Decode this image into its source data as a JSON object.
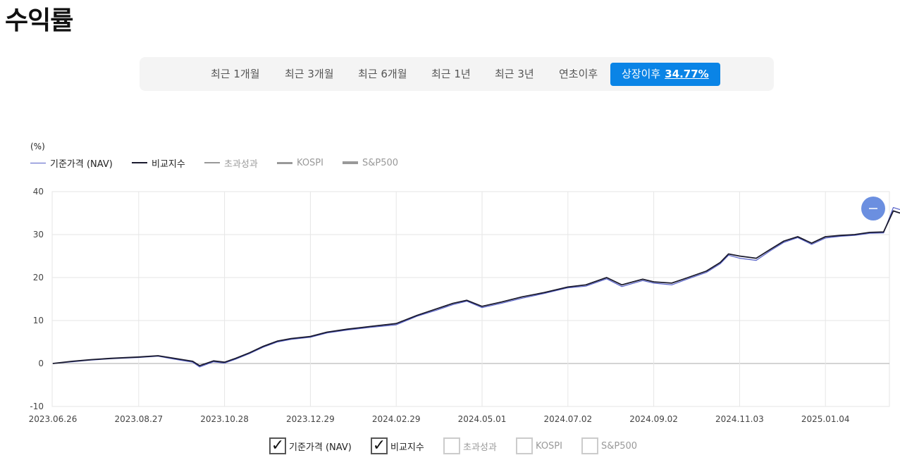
{
  "page": {
    "title": "수익률"
  },
  "period_tabs": [
    {
      "label": "최근 1개월"
    },
    {
      "label": "최근 3개월"
    },
    {
      "label": "최근 6개월"
    },
    {
      "label": "최근 1년"
    },
    {
      "label": "최근 3년"
    },
    {
      "label": "연초이후"
    },
    {
      "label": "상장이후",
      "value": "34.77%",
      "active": true
    }
  ],
  "unit_label": "(%)",
  "legend": [
    {
      "label": "기준가격 (NAV)",
      "color": "#5560c8",
      "active": true
    },
    {
      "label": "비교지수",
      "color": "#1a1a2e",
      "active": true
    },
    {
      "label": "초과성과",
      "color": "#999999",
      "active": false
    },
    {
      "label": "KOSPI",
      "color": "#999999",
      "active": false
    },
    {
      "label": "S&P500",
      "color": "#999999",
      "active": false
    }
  ],
  "zoom_button": {
    "icon": "minus-icon",
    "color": "#6b8fe0"
  },
  "toggles": [
    {
      "label": "기준가격 (NAV)",
      "checked": true
    },
    {
      "label": "비교지수",
      "checked": true
    },
    {
      "label": "초과성과",
      "checked": false
    },
    {
      "label": "KOSPI",
      "checked": false
    },
    {
      "label": "S&P500",
      "checked": false
    }
  ],
  "chart_data": {
    "type": "line",
    "title": "",
    "xlabel": "",
    "ylabel": "(%)",
    "ylim": [
      -10,
      40
    ],
    "yticks": [
      -10,
      0,
      10,
      20,
      30,
      40
    ],
    "xticks": [
      "2023.06.26",
      "2023.08.27",
      "2023.10.28",
      "2023.12.29",
      "2024.02.29",
      "2024.05.01",
      "2024.07.02",
      "2024.09.02",
      "2024.11.03",
      "2025.01.04"
    ],
    "grid": true,
    "legend_position": "top-left",
    "series": [
      {
        "name": "비교지수",
        "color": "#1a1a2e",
        "x": [
          "2023.06.26",
          "2023.07.10",
          "2023.07.24",
          "2023.08.07",
          "2023.08.27",
          "2023.09.10",
          "2023.09.20",
          "2023.10.05",
          "2023.10.10",
          "2023.10.20",
          "2023.10.28",
          "2023.11.05",
          "2023.11.15",
          "2023.11.25",
          "2023.12.05",
          "2023.12.15",
          "2023.12.29",
          "2024.01.10",
          "2024.01.25",
          "2024.02.10",
          "2024.02.29",
          "2024.03.15",
          "2024.03.30",
          "2024.04.10",
          "2024.04.20",
          "2024.05.01",
          "2024.05.15",
          "2024.05.30",
          "2024.06.15",
          "2024.07.02",
          "2024.07.15",
          "2024.07.30",
          "2024.08.10",
          "2024.08.25",
          "2024.09.02",
          "2024.09.15",
          "2024.09.25",
          "2024.10.10",
          "2024.10.20",
          "2024.10.26",
          "2024.11.03",
          "2024.11.15",
          "2024.11.25",
          "2024.12.05",
          "2024.12.15",
          "2024.12.25",
          "2025.01.04",
          "2025.01.15",
          "2025.01.25",
          "2025.02.05",
          "2025.02.15",
          "2025.02.22",
          "2025.03.01"
        ],
        "y": [
          0,
          0.5,
          0.9,
          1.2,
          1.5,
          1.8,
          1.3,
          0.5,
          -0.5,
          0.6,
          0.3,
          1.2,
          2.5,
          4.0,
          5.2,
          5.8,
          6.3,
          7.3,
          8.0,
          8.6,
          9.3,
          11.2,
          12.8,
          14.0,
          14.7,
          13.3,
          14.3,
          15.5,
          16.5,
          17.8,
          18.3,
          20.0,
          18.3,
          19.6,
          19.0,
          18.7,
          19.8,
          21.5,
          23.5,
          25.5,
          25.0,
          24.5,
          26.5,
          28.5,
          29.5,
          28.0,
          29.5,
          29.8,
          30.0,
          30.5,
          30.6,
          35.5,
          34.8
        ]
      },
      {
        "name": "기준가격 (NAV)",
        "color": "#5560c8",
        "x": [
          "2023.06.26",
          "2023.07.10",
          "2023.07.24",
          "2023.08.07",
          "2023.08.27",
          "2023.09.10",
          "2023.09.20",
          "2023.10.05",
          "2023.10.10",
          "2023.10.20",
          "2023.10.28",
          "2023.11.05",
          "2023.11.15",
          "2023.11.25",
          "2023.12.05",
          "2023.12.15",
          "2023.12.29",
          "2024.01.10",
          "2024.01.25",
          "2024.02.10",
          "2024.02.29",
          "2024.03.15",
          "2024.03.30",
          "2024.04.10",
          "2024.04.20",
          "2024.05.01",
          "2024.05.15",
          "2024.05.30",
          "2024.06.15",
          "2024.07.02",
          "2024.07.15",
          "2024.07.30",
          "2024.08.10",
          "2024.08.25",
          "2024.09.02",
          "2024.09.15",
          "2024.09.25",
          "2024.10.10",
          "2024.10.20",
          "2024.10.26",
          "2024.11.03",
          "2024.11.15",
          "2024.11.25",
          "2024.12.05",
          "2024.12.15",
          "2024.12.25",
          "2025.01.04",
          "2025.01.15",
          "2025.01.25",
          "2025.02.05",
          "2025.02.15",
          "2025.02.22",
          "2025.03.01"
        ],
        "y": [
          0,
          0.4,
          0.8,
          1.1,
          1.4,
          1.7,
          1.1,
          0.3,
          -0.8,
          0.4,
          0.1,
          1.0,
          2.3,
          3.8,
          5.0,
          5.6,
          6.1,
          7.1,
          7.8,
          8.4,
          9.0,
          11.0,
          12.5,
          13.7,
          14.5,
          13.0,
          14.0,
          15.2,
          16.3,
          17.6,
          18.0,
          19.7,
          17.9,
          19.3,
          18.7,
          18.3,
          19.5,
          21.2,
          23.2,
          25.2,
          24.5,
          24.0,
          26.2,
          28.2,
          29.3,
          27.7,
          29.2,
          29.6,
          29.8,
          30.3,
          30.4,
          36.3,
          35.6
        ]
      }
    ]
  }
}
